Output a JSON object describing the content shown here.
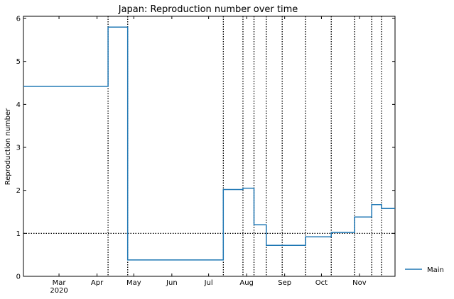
{
  "chart_data": {
    "type": "line",
    "title": "Japan: Reproduction number over time",
    "xlabel": "",
    "ylabel": "Reproduction number",
    "xlim": [
      "2020-02-01",
      "2020-11-30"
    ],
    "ylim": [
      0,
      6.05
    ],
    "yticks": [
      0,
      1,
      2,
      3,
      4,
      5,
      6
    ],
    "xticks": [
      {
        "date": "2020-03-01",
        "label": "Mar",
        "sublabel": "2020"
      },
      {
        "date": "2020-04-01",
        "label": "Apr",
        "sublabel": ""
      },
      {
        "date": "2020-05-01",
        "label": "May",
        "sublabel": ""
      },
      {
        "date": "2020-06-01",
        "label": "Jun",
        "sublabel": ""
      },
      {
        "date": "2020-07-01",
        "label": "Jul",
        "sublabel": ""
      },
      {
        "date": "2020-08-01",
        "label": "Aug",
        "sublabel": ""
      },
      {
        "date": "2020-09-01",
        "label": "Sep",
        "sublabel": ""
      },
      {
        "date": "2020-10-01",
        "label": "Oct",
        "sublabel": ""
      },
      {
        "date": "2020-11-01",
        "label": "Nov",
        "sublabel": ""
      }
    ],
    "reference_line_y": 1,
    "change_points": [
      "2020-04-10",
      "2020-04-26",
      "2020-07-13",
      "2020-07-29",
      "2020-08-07",
      "2020-08-17",
      "2020-08-30",
      "2020-09-18",
      "2020-10-09",
      "2020-10-28",
      "2020-11-11",
      "2020-11-19"
    ],
    "series": [
      {
        "name": "Main",
        "color": "#1f77b4",
        "steps": [
          {
            "start": "2020-02-01",
            "end": "2020-04-10",
            "value": 4.42
          },
          {
            "start": "2020-04-10",
            "end": "2020-04-26",
            "value": 5.8
          },
          {
            "start": "2020-04-26",
            "end": "2020-07-13",
            "value": 0.38
          },
          {
            "start": "2020-07-13",
            "end": "2020-07-29",
            "value": 2.02
          },
          {
            "start": "2020-07-29",
            "end": "2020-08-07",
            "value": 2.05
          },
          {
            "start": "2020-08-07",
            "end": "2020-08-17",
            "value": 1.2
          },
          {
            "start": "2020-08-17",
            "end": "2020-09-18",
            "value": 0.72
          },
          {
            "start": "2020-09-18",
            "end": "2020-10-09",
            "value": 0.92
          },
          {
            "start": "2020-10-09",
            "end": "2020-10-28",
            "value": 1.02
          },
          {
            "start": "2020-10-28",
            "end": "2020-11-11",
            "value": 1.38
          },
          {
            "start": "2020-11-11",
            "end": "2020-11-19",
            "value": 1.67
          },
          {
            "start": "2020-11-19",
            "end": "2020-11-30",
            "value": 1.58
          }
        ]
      }
    ],
    "legend": {
      "position": "right",
      "entries": [
        "Main"
      ]
    },
    "grid": false
  }
}
